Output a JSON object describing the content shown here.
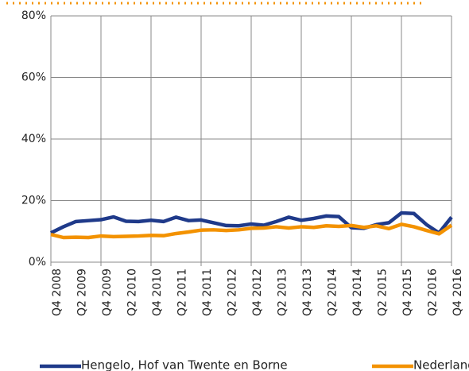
{
  "chart_data": {
    "type": "line",
    "categories": [
      "Q4 2008",
      null,
      "Q2 2009",
      null,
      "Q4 2009",
      null,
      "Q2 2010",
      null,
      "Q4 2010",
      null,
      "Q2 2011",
      null,
      "Q4 2011",
      null,
      "Q2 2012",
      null,
      "Q4 2012",
      null,
      "Q2 2013",
      null,
      "Q4 2013",
      null,
      "Q2 2014",
      null,
      "Q4 2014",
      null,
      "Q2 2015",
      null,
      "Q4 2015",
      null,
      "Q2 2016",
      null,
      "Q4 2016"
    ],
    "series": [
      {
        "name": "Hengelo, Hof van Twente en Borne",
        "color": "#1f3a8a",
        "values": [
          9.5,
          11.5,
          13.2,
          13.5,
          13.8,
          14.7,
          13.3,
          13.2,
          13.6,
          13.2,
          14.6,
          13.5,
          13.7,
          12.8,
          11.9,
          11.8,
          12.4,
          12.0,
          13.2,
          14.6,
          13.6,
          14.2,
          15.0,
          14.8,
          11.2,
          11.0,
          12.2,
          12.8,
          16.0,
          15.8,
          12.2,
          9.5,
          14.6
        ]
      },
      {
        "name": "Nederland",
        "color": "#f39200",
        "values": [
          9.0,
          8.0,
          8.1,
          8.0,
          8.5,
          8.3,
          8.4,
          8.5,
          8.7,
          8.6,
          9.3,
          9.8,
          10.4,
          10.5,
          10.3,
          10.5,
          11.0,
          11.1,
          11.5,
          11.1,
          11.5,
          11.3,
          11.8,
          11.6,
          11.9,
          11.3,
          11.8,
          10.9,
          12.3,
          11.5,
          10.3,
          9.2,
          12.0
        ]
      }
    ],
    "ylim": [
      0,
      80
    ],
    "yticks": [
      {
        "value": 0,
        "label": "0%"
      },
      {
        "value": 20,
        "label": "20%"
      },
      {
        "value": 40,
        "label": "40%"
      },
      {
        "value": 60,
        "label": "60%"
      },
      {
        "value": 80,
        "label": "80%"
      }
    ],
    "grid": true
  }
}
